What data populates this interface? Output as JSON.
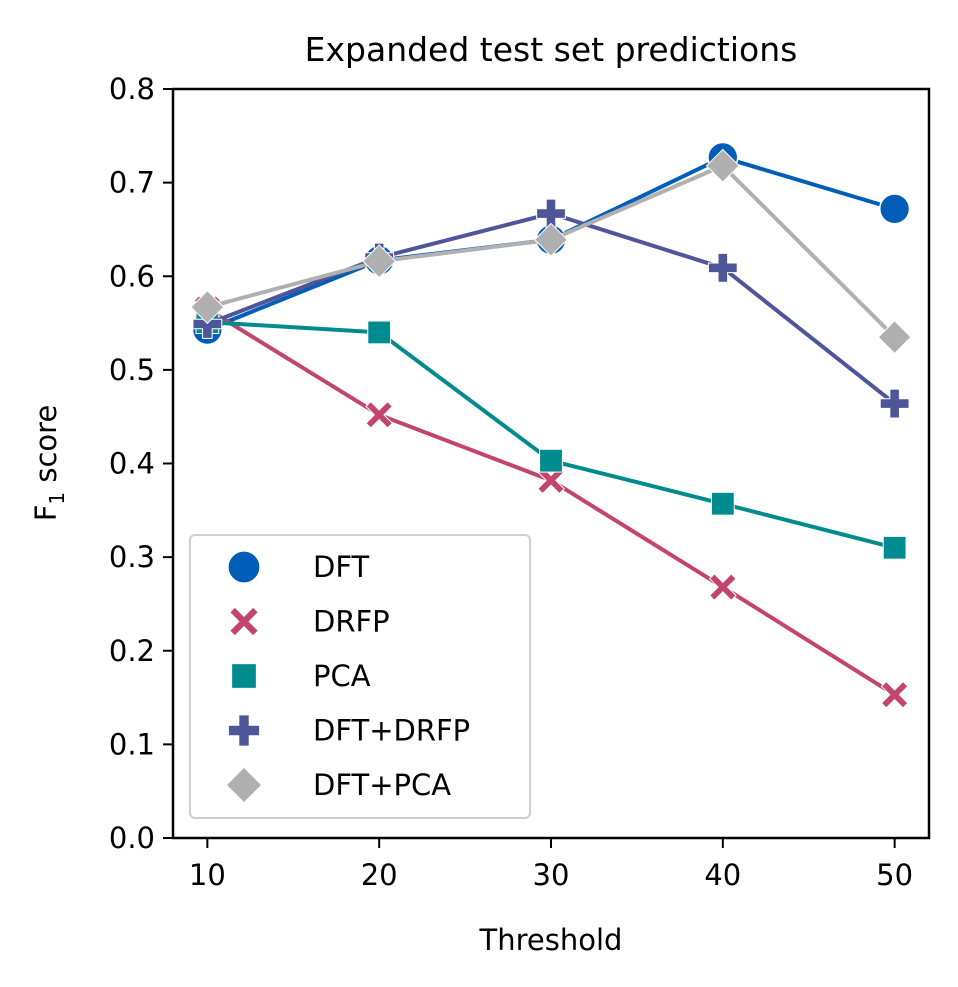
{
  "chart_data": {
    "type": "line",
    "title": "Expanded test set predictions",
    "xlabel": "Threshold",
    "ylabel_main": "F",
    "ylabel_sub": "1",
    "ylabel_rest": " score",
    "x": [
      10,
      20,
      30,
      40,
      50
    ],
    "xlim": [
      8,
      52
    ],
    "ylim": [
      0.0,
      0.8
    ],
    "xticks": [
      "10",
      "20",
      "30",
      "40",
      "50"
    ],
    "yticks": [
      "0.0",
      "0.1",
      "0.2",
      "0.3",
      "0.4",
      "0.5",
      "0.6",
      "0.7",
      "0.8"
    ],
    "grid": false,
    "legend_position": "lower-left",
    "series": [
      {
        "name": "DFT",
        "marker": "circle",
        "color": "#005EB8",
        "values": [
          0.543,
          0.617,
          0.639,
          0.727,
          0.672
        ]
      },
      {
        "name": "DRFP",
        "marker": "x",
        "color": "#C2456E",
        "values": [
          0.565,
          0.452,
          0.382,
          0.268,
          0.153
        ]
      },
      {
        "name": "PCA",
        "marker": "square",
        "color": "#008B8F",
        "values": [
          0.551,
          0.54,
          0.403,
          0.357,
          0.31
        ]
      },
      {
        "name": "DFT+DRFP",
        "marker": "plus",
        "color": "#4F5599",
        "values": [
          0.549,
          0.62,
          0.667,
          0.609,
          0.464
        ]
      },
      {
        "name": "DFT+PCA",
        "marker": "diamond",
        "color": "#B0B0B0",
        "values": [
          0.567,
          0.616,
          0.639,
          0.718,
          0.535
        ]
      }
    ]
  }
}
